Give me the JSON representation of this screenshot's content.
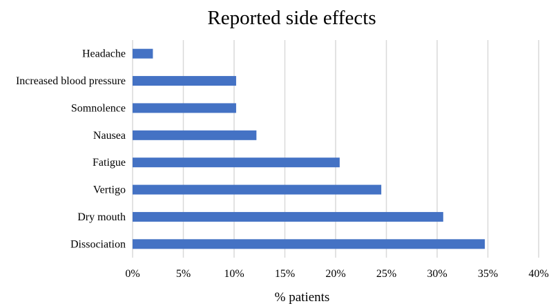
{
  "chart_data": {
    "type": "bar",
    "orientation": "horizontal",
    "title": "Reported side effects",
    "xlabel": "% patients",
    "ylabel": "",
    "categories": [
      "Headache",
      "Increased blood pressure",
      "Somnolence",
      "Nausea",
      "Fatigue",
      "Vertigo",
      "Dry mouth",
      "Dissociation"
    ],
    "values": [
      2.0,
      10.2,
      10.2,
      12.2,
      20.4,
      24.5,
      30.6,
      34.7
    ],
    "xlim": [
      0,
      40
    ],
    "xticks": [
      "0%",
      "5%",
      "10%",
      "15%",
      "20%",
      "25%",
      "30%",
      "35%",
      "40%"
    ],
    "grid": "vertical",
    "legend": "none",
    "bar_color": "#4472C4",
    "grid_color": "#D9D9D9"
  }
}
